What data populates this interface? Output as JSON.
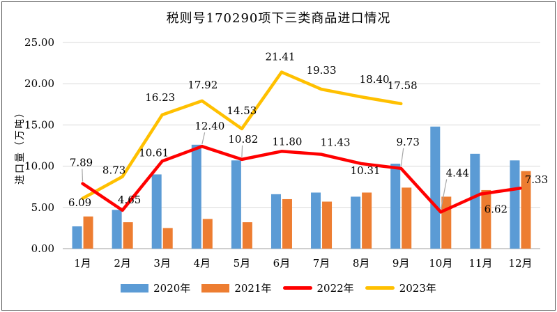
{
  "title": "税则号170290项下三类商品进口情况",
  "y_axis": {
    "title": "进口量（万吨）",
    "tick_labels": [
      "0.00",
      "5.00",
      "10.00",
      "15.00",
      "20.00",
      "25.00"
    ]
  },
  "x_axis": {
    "categories": [
      "1月",
      "2月",
      "3月",
      "4月",
      "5月",
      "6月",
      "7月",
      "8月",
      "9月",
      "10月",
      "11月",
      "12月"
    ]
  },
  "legend": {
    "items": [
      {
        "label": "2020年",
        "color": "#5B9BD5",
        "swatch": "bar"
      },
      {
        "label": "2021年",
        "color": "#ED7D31",
        "swatch": "bar"
      },
      {
        "label": "2022年",
        "color": "#FF0000",
        "swatch": "line"
      },
      {
        "label": "2023年",
        "color": "#FFC000",
        "swatch": "line"
      }
    ]
  },
  "chart_data": {
    "type": "bar+line",
    "title": "税则号170290项下三类商品进口情况",
    "xlabel": "",
    "ylabel": "进口量（万吨）",
    "ylim": [
      0,
      25
    ],
    "ytick_step": 5,
    "grid": true,
    "legend_position": "bottom",
    "categories": [
      "1月",
      "2月",
      "3月",
      "4月",
      "5月",
      "6月",
      "7月",
      "8月",
      "9月",
      "10月",
      "11月",
      "12月"
    ],
    "series": [
      {
        "name": "2020年",
        "type": "bar",
        "color": "#5B9BD5",
        "values": [
          2.7,
          4.7,
          9.0,
          12.6,
          10.7,
          6.6,
          6.8,
          6.3,
          10.3,
          14.8,
          11.5,
          10.7
        ]
      },
      {
        "name": "2021年",
        "type": "bar",
        "color": "#ED7D31",
        "values": [
          3.9,
          3.2,
          2.5,
          3.6,
          3.2,
          6.0,
          5.7,
          6.8,
          7.4,
          6.3,
          7.1,
          9.4
        ]
      },
      {
        "name": "2022年",
        "type": "line",
        "color": "#FF0000",
        "values": [
          7.89,
          4.65,
          10.61,
          12.4,
          10.82,
          11.8,
          11.43,
          10.31,
          9.73,
          4.44,
          6.62,
          7.33
        ],
        "point_labels": [
          "7.89",
          "4.65",
          "10.61",
          "12.40",
          "10.82",
          "11.80",
          "11.43",
          "10.31",
          "9.73",
          "4.44",
          "6.62",
          "7.33"
        ]
      },
      {
        "name": "2023年",
        "type": "line",
        "color": "#FFC000",
        "values": [
          6.09,
          8.73,
          16.23,
          17.92,
          14.53,
          21.41,
          19.33,
          18.4,
          17.58,
          null,
          null,
          null
        ],
        "point_labels": [
          "6.09",
          "8.73",
          "16.23",
          "17.92",
          "14.53",
          "21.41",
          "19.33",
          "18.40",
          "17.58"
        ]
      }
    ]
  },
  "colors": {
    "gridline": "#D9D9D9",
    "axis_line": "#BFBFBF",
    "leader": "#A6A6A6",
    "text": "#000000",
    "border": "#5A5A5A"
  }
}
